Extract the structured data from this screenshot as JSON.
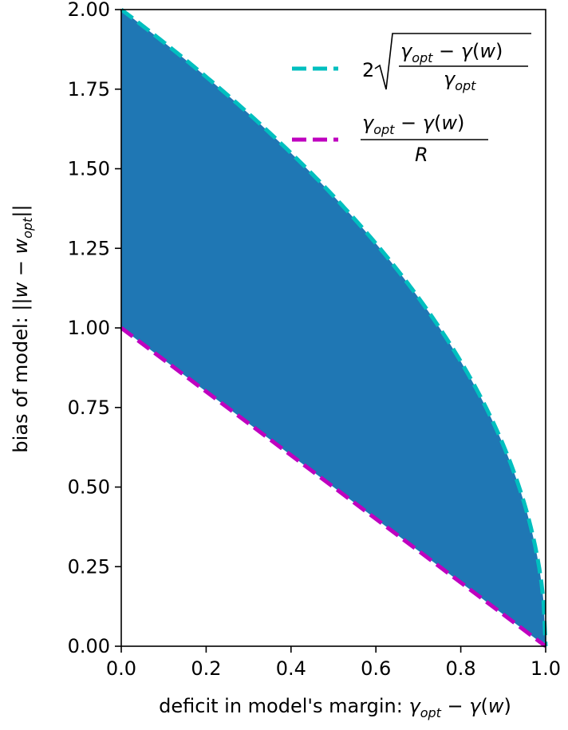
{
  "chart_data": {
    "type": "area",
    "title": "",
    "xlabel": "deficit in model's margin: γ_opt − γ(w)",
    "ylabel": "bias of model: ||w − w_opt||",
    "xlim": [
      0.0,
      1.0
    ],
    "ylim": [
      0.0,
      2.0
    ],
    "x_ticks": [
      "0.0",
      "0.2",
      "0.4",
      "0.6",
      "0.8",
      "1.0"
    ],
    "y_ticks": [
      "0.00",
      "0.25",
      "0.50",
      "0.75",
      "1.00",
      "1.25",
      "1.50",
      "1.75",
      "2.00"
    ],
    "fill": {
      "color": "#1f77b4",
      "between": [
        "upper bound",
        "lower bound"
      ]
    },
    "series": [
      {
        "name": "2√((γ_opt − γ(w))/γ_opt)",
        "style": "dashed",
        "color": "#00bfbf",
        "x": [
          0.0,
          0.1,
          0.2,
          0.3,
          0.4,
          0.5,
          0.6,
          0.7,
          0.8,
          0.9,
          0.95,
          0.99,
          1.0
        ],
        "y": [
          2.0,
          1.897,
          1.789,
          1.673,
          1.549,
          1.414,
          1.265,
          1.095,
          0.894,
          0.632,
          0.447,
          0.2,
          0.0
        ]
      },
      {
        "name": "(γ_opt − γ(w))/R",
        "style": "dashed",
        "color": "#bf00bf",
        "x": [
          0.0,
          1.0
        ],
        "y": [
          1.0,
          0.0
        ]
      }
    ],
    "legend": {
      "position": "top-right",
      "entries": [
        {
          "prefix": "2",
          "numerator": "γ_opt − γ(w)",
          "denominator": "γ_opt",
          "color": "#00bfbf"
        },
        {
          "prefix": "",
          "numerator": "γ_opt − γ(w)",
          "denominator": "R",
          "color": "#bf00bf"
        }
      ]
    },
    "grid": false
  }
}
